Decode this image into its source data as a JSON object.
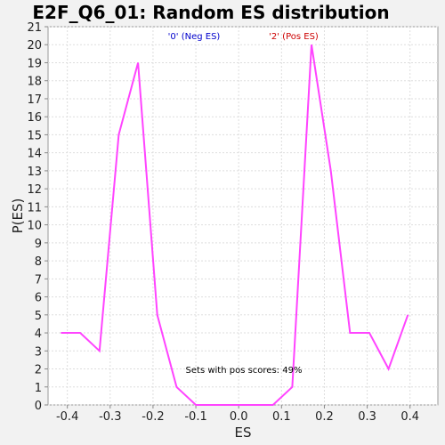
{
  "chart_data": {
    "type": "line",
    "title": "E2F_Q6_01: Random ES distribution",
    "xlabel": "ES",
    "ylabel": "P(ES)",
    "xlim": [
      -0.445,
      0.465
    ],
    "ylim": [
      0,
      21
    ],
    "x_ticks": [
      "-0.4",
      "-0.3",
      "-0.2",
      "-0.1",
      "0.0",
      "0.1",
      "0.2",
      "0.3",
      "0.4"
    ],
    "x_tick_values": [
      -0.4,
      -0.3,
      -0.2,
      -0.1,
      0.0,
      0.1,
      0.2,
      0.3,
      0.4
    ],
    "y_ticks": [
      "0",
      "1",
      "2",
      "3",
      "4",
      "5",
      "6",
      "7",
      "8",
      "9",
      "10",
      "11",
      "12",
      "13",
      "14",
      "15",
      "16",
      "17",
      "18",
      "19",
      "20",
      "21"
    ],
    "grid": true,
    "legend": [
      {
        "label": "'0' (Neg ES)",
        "color": "#0000cc"
      },
      {
        "label": "'2' (Pos ES)",
        "color": "#cc0000"
      }
    ],
    "annotation": "Sets with pos scores: 49%",
    "series": [
      {
        "color": "#ff44ff",
        "x": [
          -0.415,
          -0.37,
          -0.325,
          -0.28,
          -0.235,
          -0.19,
          -0.145,
          -0.1,
          -0.055,
          -0.01,
          0.035,
          0.08,
          0.125,
          0.17,
          0.215,
          0.26,
          0.305,
          0.35,
          0.395
        ],
        "y": [
          4,
          4,
          3,
          15,
          19,
          5,
          1,
          0,
          0,
          0,
          0,
          0,
          1,
          20,
          13,
          4,
          4,
          2,
          5
        ]
      }
    ]
  }
}
